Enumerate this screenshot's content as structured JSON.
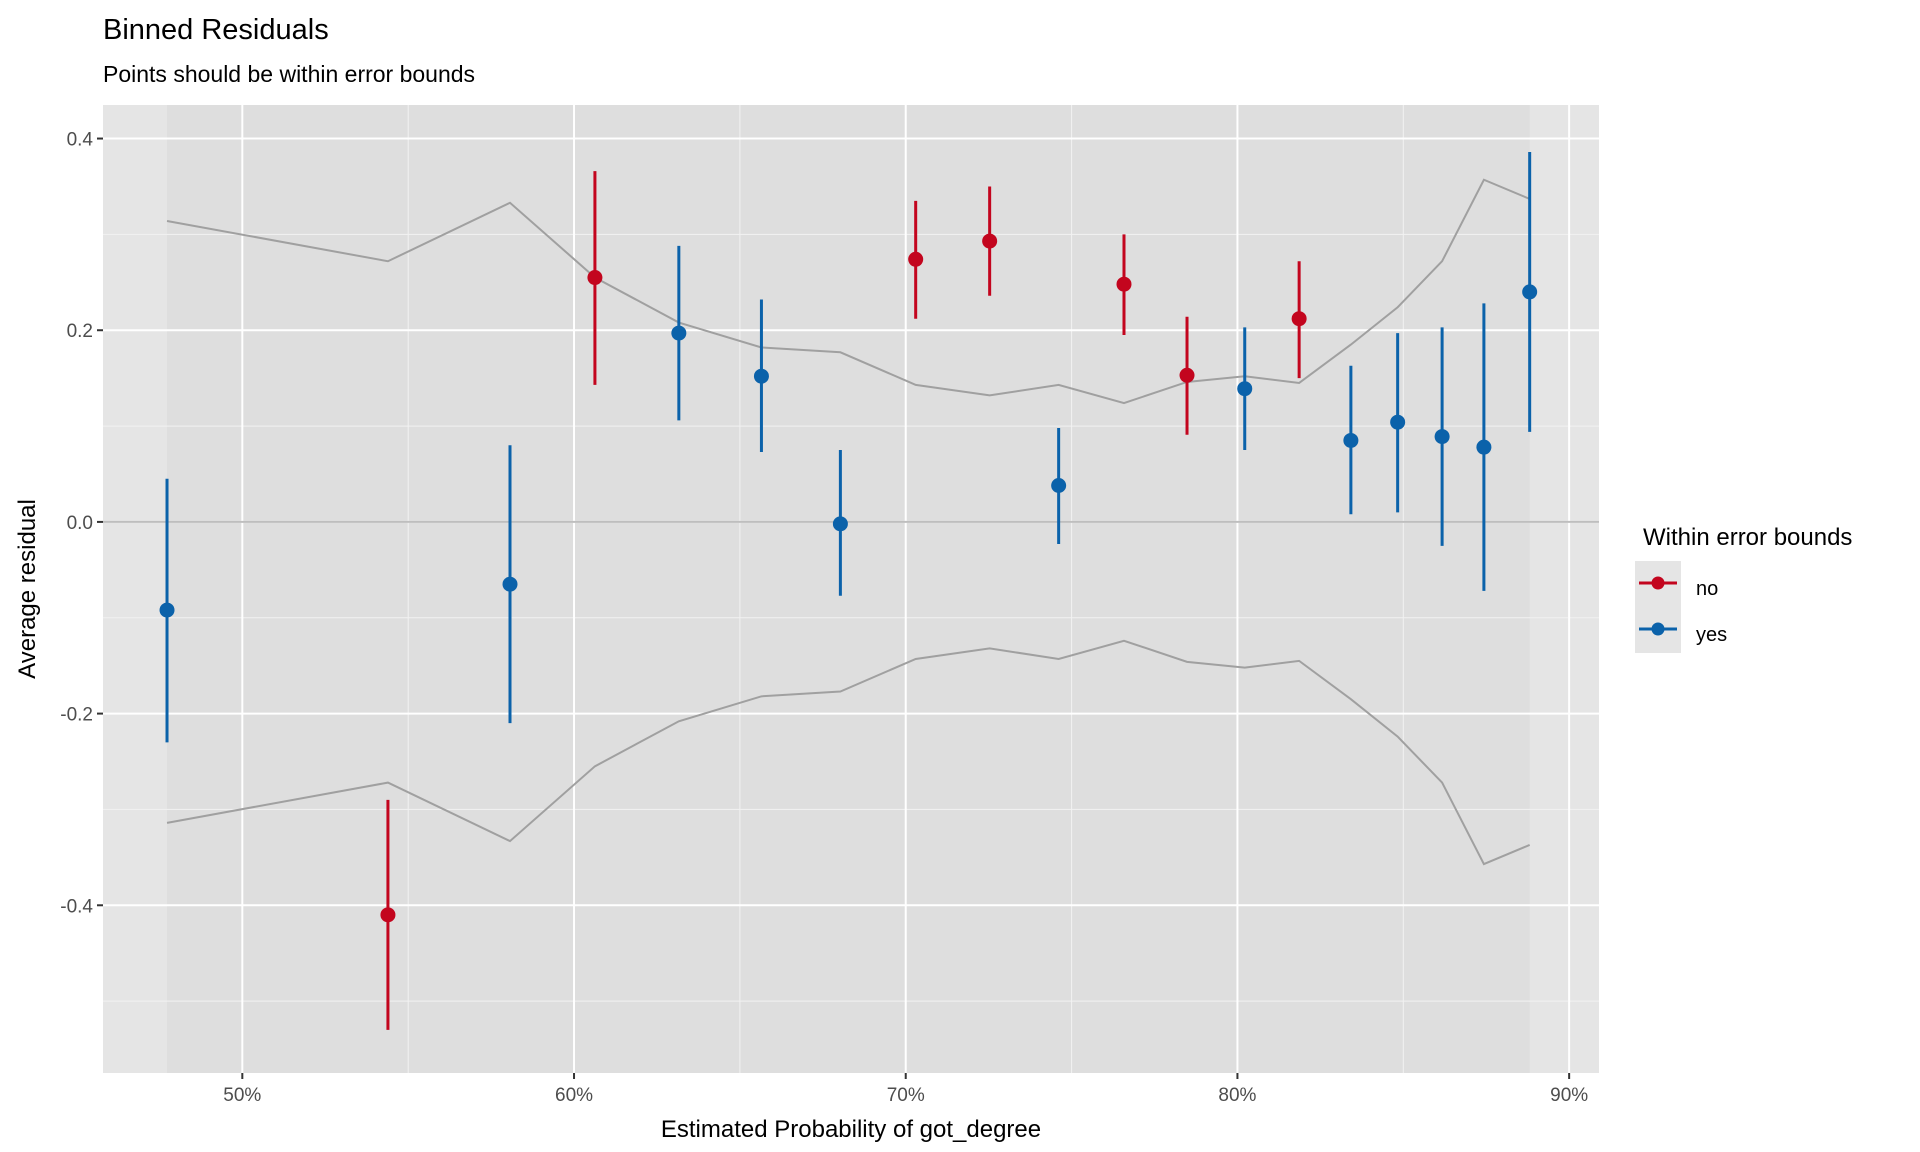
{
  "chart_data": {
    "type": "scatter",
    "title": "Binned Residuals",
    "subtitle": "Points should be within error bounds",
    "xlabel": "Estimated Probability of got_degree",
    "ylabel": "Average residual",
    "xlim": [
      45.8,
      90.9
    ],
    "ylim": [
      -0.575,
      0.435
    ],
    "x_ticks": [
      50,
      60,
      70,
      80,
      90
    ],
    "x_tick_labels": [
      "50%",
      "60%",
      "70%",
      "80%",
      "90%"
    ],
    "y_ticks": [
      0.4,
      0.2,
      0.0,
      -0.2,
      -0.4
    ],
    "y_tick_labels": [
      "0.4",
      "0.2",
      "0.0",
      "-0.2",
      "-0.4"
    ],
    "grid": true,
    "legend": {
      "title": "Within error bounds",
      "position": "right",
      "entries": [
        {
          "label": "no",
          "color": "#C3051E"
        },
        {
          "label": "yes",
          "color": "#0B62AA"
        }
      ]
    },
    "colors": {
      "no": "#C3051E",
      "yes": "#0B62AA",
      "bounds": "#A0A0A0",
      "panel": "#E5E5E5",
      "ribbon": "#DEDEDE"
    },
    "points": [
      {
        "x": 47.73,
        "y": -0.092,
        "ymin": -0.23,
        "ymax": 0.045,
        "bound": 0.314,
        "group": "yes"
      },
      {
        "x": 54.39,
        "y": -0.41,
        "ymin": -0.53,
        "ymax": -0.29,
        "bound": 0.272,
        "group": "no"
      },
      {
        "x": 58.07,
        "y": -0.065,
        "ymin": -0.21,
        "ymax": 0.08,
        "bound": 0.333,
        "group": "yes"
      },
      {
        "x": 60.63,
        "y": 0.255,
        "ymin": 0.143,
        "ymax": 0.366,
        "bound": 0.255,
        "group": "no"
      },
      {
        "x": 63.16,
        "y": 0.197,
        "ymin": 0.106,
        "ymax": 0.288,
        "bound": 0.208,
        "group": "yes"
      },
      {
        "x": 65.65,
        "y": 0.152,
        "ymin": 0.073,
        "ymax": 0.232,
        "bound": 0.182,
        "group": "yes"
      },
      {
        "x": 68.03,
        "y": -0.002,
        "ymin": -0.077,
        "ymax": 0.075,
        "bound": 0.177,
        "group": "yes"
      },
      {
        "x": 70.3,
        "y": 0.274,
        "ymin": 0.212,
        "ymax": 0.335,
        "bound": 0.143,
        "group": "no"
      },
      {
        "x": 72.53,
        "y": 0.293,
        "ymin": 0.236,
        "ymax": 0.35,
        "bound": 0.132,
        "group": "no"
      },
      {
        "x": 74.61,
        "y": 0.038,
        "ymin": -0.023,
        "ymax": 0.098,
        "bound": 0.143,
        "group": "yes"
      },
      {
        "x": 76.58,
        "y": 0.248,
        "ymin": 0.195,
        "ymax": 0.3,
        "bound": 0.124,
        "group": "no"
      },
      {
        "x": 78.48,
        "y": 0.153,
        "ymin": 0.091,
        "ymax": 0.214,
        "bound": 0.146,
        "group": "no"
      },
      {
        "x": 80.22,
        "y": 0.139,
        "ymin": 0.075,
        "ymax": 0.203,
        "bound": 0.152,
        "group": "yes"
      },
      {
        "x": 81.86,
        "y": 0.212,
        "ymin": 0.15,
        "ymax": 0.272,
        "bound": 0.145,
        "group": "no"
      },
      {
        "x": 83.42,
        "y": 0.085,
        "ymin": 0.008,
        "ymax": 0.163,
        "bound": 0.185,
        "group": "yes"
      },
      {
        "x": 84.83,
        "y": 0.104,
        "ymin": 0.01,
        "ymax": 0.197,
        "bound": 0.224,
        "group": "yes"
      },
      {
        "x": 86.17,
        "y": 0.089,
        "ymin": -0.025,
        "ymax": 0.203,
        "bound": 0.272,
        "group": "yes"
      },
      {
        "x": 87.43,
        "y": 0.078,
        "ymin": -0.072,
        "ymax": 0.228,
        "bound": 0.357,
        "group": "yes"
      },
      {
        "x": 88.81,
        "y": 0.24,
        "ymin": 0.094,
        "ymax": 0.386,
        "bound": 0.337,
        "group": "yes"
      }
    ]
  }
}
